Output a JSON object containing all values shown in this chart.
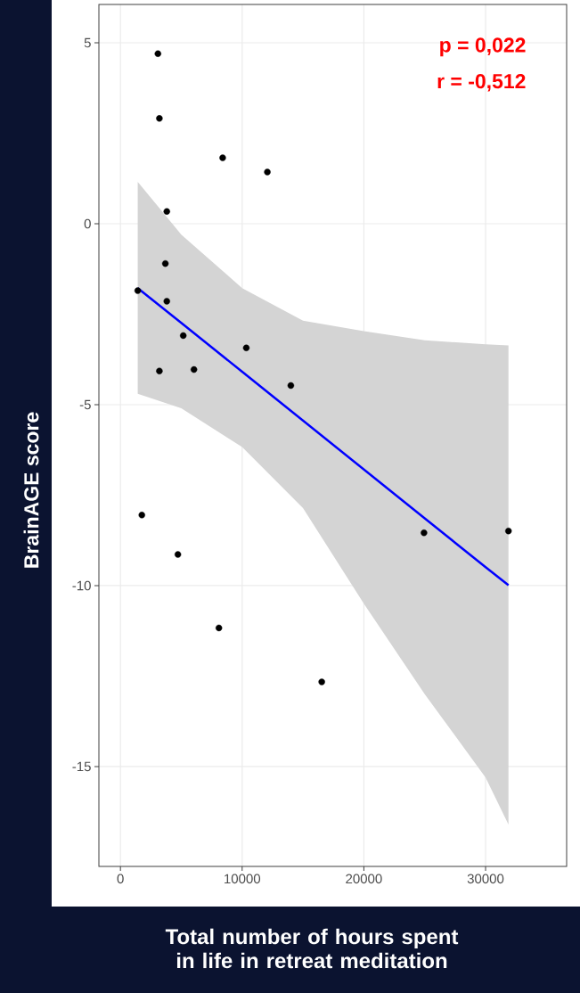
{
  "chart_data": {
    "type": "scatter",
    "xlabel": "Total number of hours spent in life in retreat meditation",
    "ylabel": "BrainAGE score",
    "annotations": [
      "p = 0,022",
      "r = -0,512"
    ],
    "xlim": [
      -1770,
      36660
    ],
    "ylim": [
      -17.76,
      6.06
    ],
    "xticks": [
      0,
      10000,
      20000,
      30000
    ],
    "yticks": [
      -15,
      -10,
      -5,
      0,
      5
    ],
    "grid": true,
    "series": [
      {
        "marker": "circle",
        "color": "#000000",
        "x": [
          3080,
          3200,
          8400,
          12070,
          3810,
          3690,
          1420,
          3810,
          5160,
          10340,
          3200,
          6040,
          14000,
          1760,
          4720,
          8090,
          16540,
          24940,
          31880
        ],
        "values": [
          4.7,
          2.91,
          1.82,
          1.43,
          0.34,
          -1.1,
          -1.85,
          -2.14,
          -3.09,
          -3.43,
          -4.07,
          -4.03,
          -4.47,
          -8.05,
          -9.14,
          -11.17,
          -12.66,
          -8.54,
          -8.49
        ]
      },
      {
        "type": "line",
        "color": "#0000ff",
        "x": [
          1420,
          5000,
          10000,
          15000,
          20000,
          25000,
          30000,
          31880
        ],
        "values": [
          -1.78,
          -2.74,
          -4.09,
          -5.44,
          -6.79,
          -8.14,
          -9.49,
          -9.99
        ],
        "lower": [
          -4.7,
          -5.1,
          -6.17,
          -7.86,
          -10.5,
          -13.0,
          -15.3,
          -16.6
        ],
        "upper": [
          1.16,
          -0.3,
          -1.78,
          -2.68,
          -2.97,
          -3.22,
          -3.33,
          -3.36
        ]
      }
    ]
  }
}
